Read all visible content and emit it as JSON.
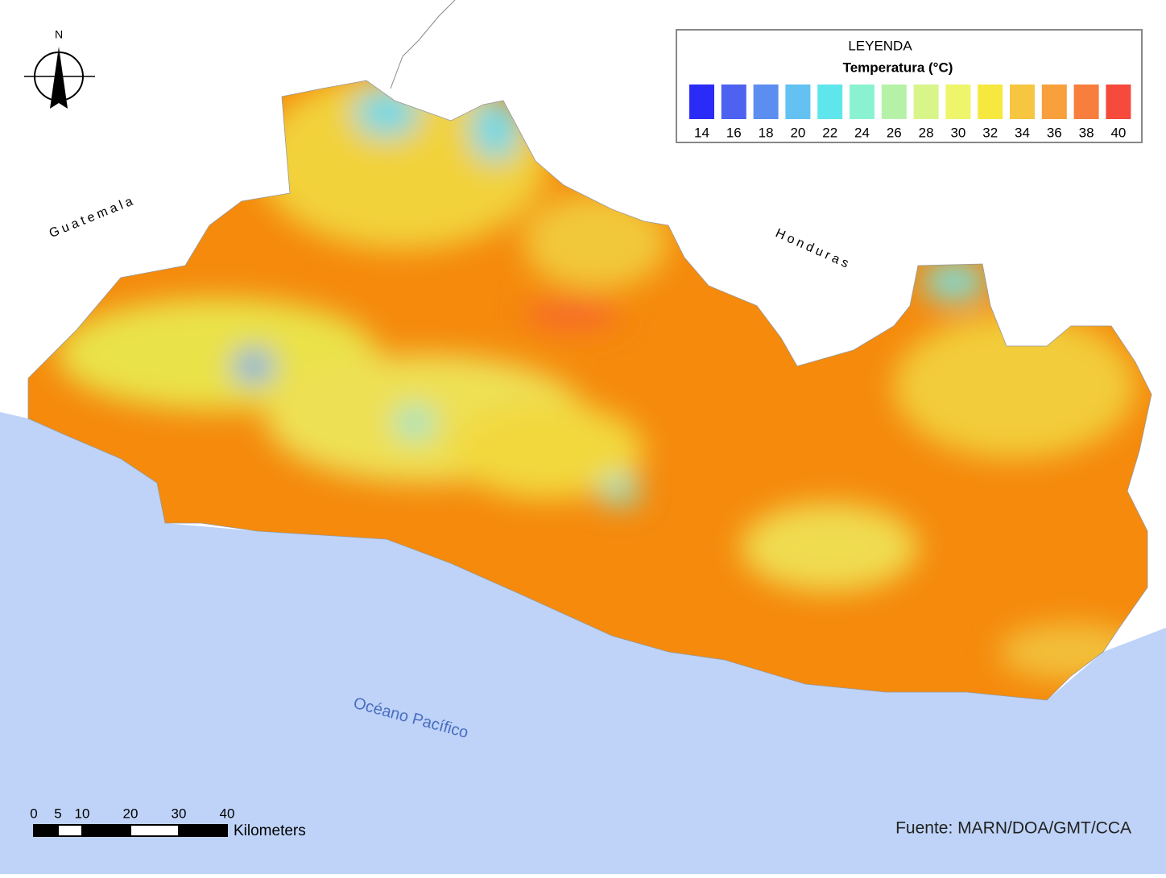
{
  "legend": {
    "title": "LEYENDA",
    "subtitle": "Temperatura (°C)",
    "items": [
      {
        "value": 14,
        "color": "#2b2bf8"
      },
      {
        "value": 16,
        "color": "#4d62f0"
      },
      {
        "value": 18,
        "color": "#5b8ef0"
      },
      {
        "value": 20,
        "color": "#63c2f2"
      },
      {
        "value": 22,
        "color": "#5fe6ec"
      },
      {
        "value": 24,
        "color": "#8af2d0"
      },
      {
        "value": 26,
        "color": "#b5f2a8"
      },
      {
        "value": 28,
        "color": "#d8f58a"
      },
      {
        "value": 30,
        "color": "#eef56a"
      },
      {
        "value": 32,
        "color": "#f7e840"
      },
      {
        "value": 34,
        "color": "#f7c640"
      },
      {
        "value": 36,
        "color": "#f7a03c"
      },
      {
        "value": 38,
        "color": "#f77e3c"
      },
      {
        "value": 40,
        "color": "#f54a3c"
      }
    ]
  },
  "labels": {
    "guatemala": "Guatemala",
    "honduras": "Honduras",
    "ocean": "Océano Pacífico"
  },
  "north_arrow": {
    "label": "N"
  },
  "scale_bar": {
    "ticks": [
      0,
      5,
      10,
      20,
      30,
      40
    ],
    "unit": "Kilometers"
  },
  "source": "Fuente: MARN/DOA/GMT/CCA"
}
